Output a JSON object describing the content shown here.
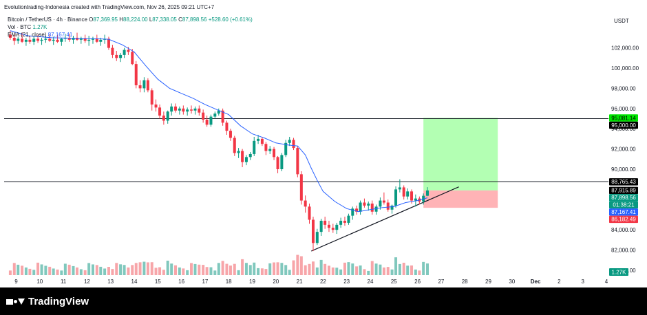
{
  "attribution": "Evolutiontrading-Indonesia created with TradingView.com, Nov 26, 2025 09:21 UTC+7",
  "legend": {
    "symbol": "Bitcoin / TetherUS · 4h · Binance",
    "open_label": "O",
    "open": "87,369.95",
    "high_label": "H",
    "high": "88,224.00",
    "low_label": "L",
    "low": "87,338.05",
    "close_label": "C",
    "close": "87,898.56",
    "change": "+528.60 (+0.61%)",
    "vol_label": "Vol · BTC",
    "vol_value": "1.27K",
    "ema_label": "EMA (21, close)",
    "ema_value": "87,167.41"
  },
  "currency": "USDT",
  "brand": "TradingView",
  "colors": {
    "up": "#089981",
    "down": "#f23645",
    "up_volume": "#80c8bd",
    "down_volume": "#f7a5a9",
    "ema": "#2962ff",
    "target_zone": "#b3ffb3",
    "stop_zone": "#ffb3b6"
  },
  "chart_data": {
    "type": "candlestick",
    "title": "Bitcoin / TetherUS · 4h · Binance",
    "ylim": [
      78800,
      103300
    ],
    "x_ticks": [
      "9",
      "10",
      "11",
      "12",
      "13",
      "14",
      "15",
      "16",
      "17",
      "18",
      "19",
      "20",
      "21",
      "22",
      "23",
      "24",
      "25",
      "26",
      "27",
      "28",
      "29",
      "30",
      "Dec",
      "2",
      "3",
      "4"
    ],
    "y_ticks": [
      "80,000.00",
      "82,000.00",
      "84,000.00",
      "86,000.00",
      "88,000.00",
      "90,000.00",
      "92,000.00",
      "94,000.00",
      "96,000.00",
      "98,000.00",
      "100,000.00",
      "102,000.00"
    ],
    "horizontal_lines": [
      {
        "price": 95000,
        "label": "95,000.00"
      },
      {
        "price": 88765.43,
        "label": "88,765.43"
      }
    ],
    "price_tags": [
      {
        "label": "95,081.14",
        "price": 95081.14,
        "kind": "target"
      },
      {
        "label": "95,000.00",
        "price": 95000,
        "kind": "line"
      },
      {
        "label": "88,765.43",
        "price": 88765.43,
        "kind": "line"
      },
      {
        "label": "87,915.89",
        "price": 87915.89,
        "kind": "line"
      },
      {
        "label": "87,898.56",
        "price": 87898.56,
        "kind": "last"
      },
      {
        "label": "01:38:21",
        "price": 87380,
        "kind": "countdown"
      },
      {
        "label": "87,167.41",
        "price": 87167.41,
        "kind": "ema"
      },
      {
        "label": "86,182.49",
        "price": 86182.49,
        "kind": "stop"
      }
    ],
    "volume_tag": "1.27K",
    "position": {
      "start_day": 26.25,
      "end_day": 29.4,
      "entry": 87898.56,
      "target": 95081.14,
      "stop": 86182.49
    },
    "trendline": {
      "from": {
        "day": 21.5,
        "price": 81900
      },
      "to": {
        "day": 27.75,
        "price": 88250
      }
    },
    "ohlc_4h": [
      [
        8.75,
        103300,
        103700,
        102800,
        103000
      ],
      [
        8.92,
        103000,
        103300,
        102300,
        102700
      ],
      [
        9.08,
        102700,
        103100,
        102400,
        102900
      ],
      [
        9.25,
        102900,
        103500,
        102500,
        102600
      ],
      [
        9.42,
        102600,
        103000,
        102200,
        102800
      ],
      [
        9.58,
        102800,
        103200,
        102400,
        102600
      ],
      [
        9.75,
        102600,
        103100,
        102300,
        102900
      ],
      [
        9.92,
        102900,
        103300,
        102500,
        102700
      ],
      [
        10.08,
        102700,
        103000,
        102300,
        102800
      ],
      [
        10.25,
        102800,
        103200,
        102500,
        102900
      ],
      [
        10.42,
        102900,
        103300,
        102600,
        102700
      ],
      [
        10.58,
        102700,
        103100,
        102300,
        102800
      ],
      [
        10.75,
        102800,
        103300,
        102500,
        102600
      ],
      [
        10.92,
        102600,
        103000,
        102200,
        102900
      ],
      [
        11.08,
        102900,
        103400,
        102600,
        103000
      ],
      [
        11.25,
        103000,
        103400,
        102600,
        102800
      ],
      [
        11.42,
        102800,
        103200,
        102400,
        103000
      ],
      [
        11.58,
        103000,
        103500,
        102700,
        102800
      ],
      [
        11.75,
        102800,
        103100,
        102400,
        102900
      ],
      [
        11.92,
        102900,
        103300,
        102500,
        102700
      ],
      [
        12.08,
        102700,
        103200,
        102200,
        102800
      ],
      [
        12.25,
        102800,
        103100,
        102400,
        102900
      ],
      [
        12.42,
        102900,
        103300,
        102500,
        102600
      ],
      [
        12.58,
        102600,
        103000,
        102200,
        102800
      ],
      [
        12.75,
        102800,
        103300,
        102400,
        102900
      ],
      [
        12.92,
        102900,
        103100,
        101800,
        102000
      ],
      [
        13.08,
        102000,
        102300,
        101000,
        101300
      ],
      [
        13.25,
        101300,
        101700,
        100700,
        101000
      ],
      [
        13.42,
        101000,
        101500,
        100600,
        101300
      ],
      [
        13.58,
        101300,
        102000,
        101000,
        101800
      ],
      [
        13.75,
        101800,
        102100,
        101300,
        101600
      ],
      [
        13.92,
        101600,
        101900,
        100300,
        100400
      ],
      [
        14.08,
        100400,
        100700,
        98000,
        98300
      ],
      [
        14.25,
        98300,
        98800,
        97600,
        98000
      ],
      [
        14.42,
        98000,
        99100,
        97600,
        98800
      ],
      [
        14.58,
        98800,
        99000,
        97600,
        97800
      ],
      [
        14.75,
        97800,
        98000,
        95800,
        96400
      ],
      [
        14.92,
        96400,
        96900,
        95700,
        96100
      ],
      [
        15.08,
        96100,
        96400,
        95000,
        95300
      ],
      [
        15.25,
        95300,
        95700,
        94400,
        94800
      ],
      [
        15.42,
        94800,
        95800,
        94500,
        95700
      ],
      [
        15.58,
        95700,
        96500,
        95300,
        96200
      ],
      [
        15.75,
        96200,
        96500,
        95600,
        95800
      ],
      [
        15.92,
        95800,
        96200,
        95400,
        96000
      ],
      [
        16.08,
        96000,
        96300,
        95400,
        95700
      ],
      [
        16.25,
        95700,
        96100,
        95300,
        95900
      ],
      [
        16.42,
        95900,
        96300,
        95500,
        95800
      ],
      [
        16.58,
        95800,
        96200,
        95400,
        96000
      ],
      [
        16.75,
        96000,
        96300,
        95300,
        95600
      ],
      [
        16.92,
        95600,
        95900,
        94600,
        94900
      ],
      [
        17.08,
        94900,
        95300,
        94200,
        94400
      ],
      [
        17.25,
        94400,
        95400,
        94200,
        95200
      ],
      [
        17.42,
        95200,
        95700,
        95000,
        95500
      ],
      [
        17.58,
        95500,
        96000,
        95300,
        95800
      ],
      [
        17.75,
        95800,
        96000,
        94300,
        94600
      ],
      [
        17.92,
        94600,
        94800,
        93400,
        93800
      ],
      [
        18.08,
        93800,
        94000,
        92800,
        93100
      ],
      [
        18.25,
        93100,
        93300,
        91300,
        91600
      ],
      [
        18.42,
        91600,
        92100,
        91100,
        91800
      ],
      [
        18.58,
        91800,
        92000,
        90200,
        90700
      ],
      [
        18.75,
        90700,
        91400,
        90400,
        91200
      ],
      [
        18.92,
        91200,
        91700,
        90900,
        91500
      ],
      [
        19.08,
        91500,
        93200,
        91300,
        92800
      ],
      [
        19.25,
        92800,
        93400,
        92500,
        93000
      ],
      [
        19.42,
        93000,
        93200,
        92300,
        92500
      ],
      [
        19.58,
        92500,
        92700,
        91400,
        91800
      ],
      [
        19.75,
        91800,
        92300,
        91500,
        92000
      ],
      [
        19.92,
        92000,
        92200,
        90900,
        91200
      ],
      [
        20.08,
        91200,
        91300,
        89600,
        90000
      ],
      [
        20.25,
        90000,
        91600,
        89800,
        91400
      ],
      [
        20.42,
        91400,
        92900,
        91200,
        92600
      ],
      [
        20.58,
        92600,
        93200,
        92300,
        92900
      ],
      [
        20.75,
        92900,
        93100,
        91900,
        92100
      ],
      [
        20.92,
        92100,
        92300,
        89200,
        89500
      ],
      [
        21.08,
        89500,
        89800,
        86500,
        86900
      ],
      [
        21.25,
        86900,
        87400,
        85700,
        86300
      ],
      [
        21.42,
        86300,
        86600,
        84600,
        85000
      ],
      [
        21.58,
        85000,
        85300,
        81900,
        82700
      ],
      [
        21.75,
        82700,
        84100,
        82500,
        83800
      ],
      [
        21.92,
        83800,
        85100,
        83400,
        84900
      ],
      [
        22.08,
        84900,
        85300,
        84100,
        84500
      ],
      [
        22.25,
        84500,
        84900,
        83800,
        84200
      ],
      [
        22.42,
        84200,
        84600,
        83700,
        84000
      ],
      [
        22.58,
        84000,
        84700,
        83600,
        84500
      ],
      [
        22.75,
        84500,
        85200,
        84200,
        84900
      ],
      [
        22.92,
        84900,
        85300,
        84400,
        84700
      ],
      [
        23.08,
        84700,
        85600,
        84500,
        85400
      ],
      [
        23.25,
        85400,
        86300,
        85000,
        86100
      ],
      [
        23.42,
        86100,
        86400,
        85500,
        85800
      ],
      [
        23.58,
        85800,
        86900,
        85500,
        86700
      ],
      [
        23.75,
        86700,
        87100,
        86200,
        86400
      ],
      [
        23.92,
        86400,
        86800,
        85900,
        86600
      ],
      [
        24.08,
        86600,
        86900,
        85500,
        85800
      ],
      [
        24.25,
        85800,
        86500,
        85500,
        86300
      ],
      [
        24.42,
        86300,
        87200,
        86000,
        86900
      ],
      [
        24.58,
        86900,
        87700,
        86500,
        86700
      ],
      [
        24.75,
        86700,
        87000,
        85800,
        86000
      ],
      [
        24.92,
        86000,
        86500,
        85600,
        86400
      ],
      [
        25.08,
        86400,
        88300,
        86200,
        88000
      ],
      [
        25.25,
        88000,
        89000,
        87700,
        88200
      ],
      [
        25.42,
        88200,
        88400,
        87000,
        87300
      ],
      [
        25.58,
        87300,
        88100,
        87000,
        87800
      ],
      [
        25.75,
        87800,
        88000,
        86600,
        86900
      ],
      [
        25.92,
        86900,
        87500,
        86300,
        87100
      ],
      [
        26.08,
        87100,
        87300,
        86500,
        86800
      ],
      [
        26.25,
        86800,
        87600,
        86500,
        87370
      ],
      [
        26.42,
        87370,
        88224,
        87338,
        87899
      ]
    ],
    "ema_21": [
      [
        8.75,
        103700
      ],
      [
        9.5,
        103200
      ],
      [
        10.5,
        103000
      ],
      [
        11.5,
        102950
      ],
      [
        12.5,
        102900
      ],
      [
        12.92,
        102850
      ],
      [
        13.5,
        102300
      ],
      [
        14.0,
        101600
      ],
      [
        14.5,
        100200
      ],
      [
        15.0,
        98900
      ],
      [
        15.5,
        98000
      ],
      [
        16.0,
        97500
      ],
      [
        16.5,
        97000
      ],
      [
        17.0,
        96400
      ],
      [
        17.5,
        95900
      ],
      [
        18.0,
        95400
      ],
      [
        18.5,
        94300
      ],
      [
        19.0,
        93500
      ],
      [
        19.5,
        93100
      ],
      [
        20.0,
        92600
      ],
      [
        20.5,
        92400
      ],
      [
        20.92,
        92300
      ],
      [
        21.25,
        91400
      ],
      [
        21.5,
        90100
      ],
      [
        21.75,
        88900
      ],
      [
        22.0,
        87800
      ],
      [
        22.5,
        86800
      ],
      [
        23.0,
        86100
      ],
      [
        23.5,
        85800
      ],
      [
        24.0,
        86000
      ],
      [
        24.5,
        86200
      ],
      [
        25.0,
        86300
      ],
      [
        25.5,
        86700
      ],
      [
        26.0,
        86900
      ],
      [
        26.42,
        87167
      ]
    ]
  }
}
